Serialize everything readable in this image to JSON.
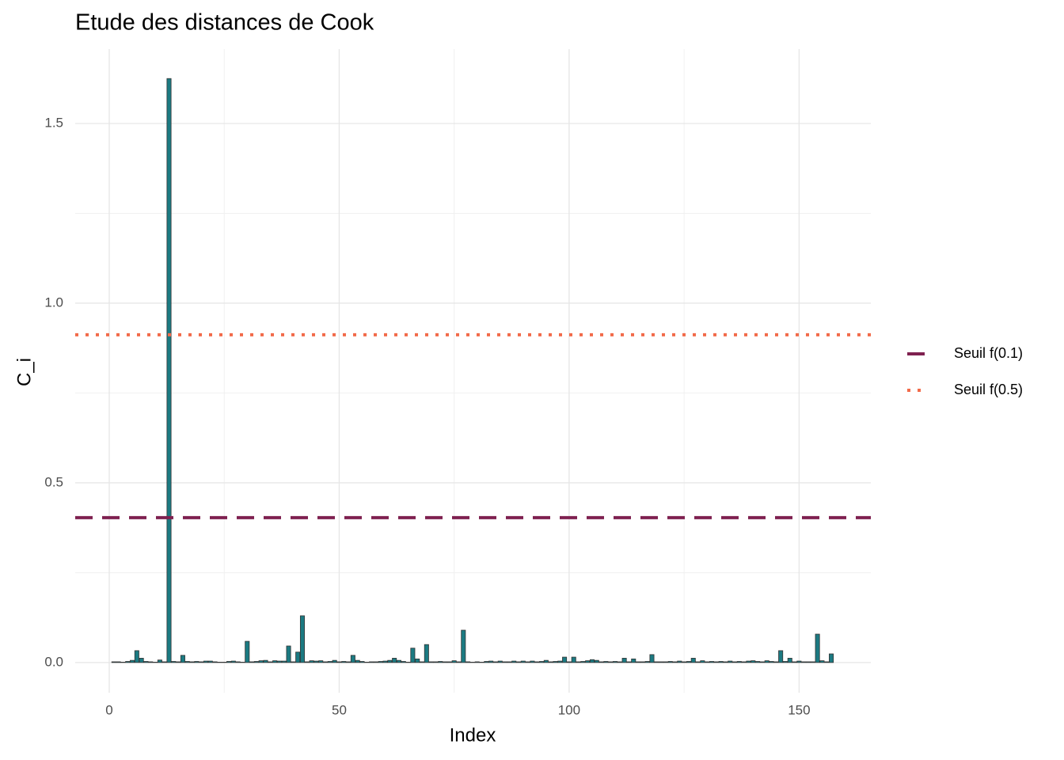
{
  "chart_data": {
    "type": "bar",
    "title": "Etude des distances de Cook",
    "x_label": "Index",
    "y_label": "C_i",
    "x": [
      1,
      2,
      3,
      4,
      5,
      6,
      7,
      8,
      9,
      10,
      11,
      12,
      13,
      14,
      15,
      16,
      17,
      18,
      19,
      20,
      21,
      22,
      23,
      24,
      25,
      26,
      27,
      28,
      29,
      30,
      31,
      32,
      33,
      34,
      35,
      36,
      37,
      38,
      39,
      40,
      41,
      42,
      43,
      44,
      45,
      46,
      47,
      48,
      49,
      50,
      51,
      52,
      53,
      54,
      55,
      56,
      57,
      58,
      59,
      60,
      61,
      62,
      63,
      64,
      65,
      66,
      67,
      68,
      69,
      70,
      71,
      72,
      73,
      74,
      75,
      76,
      77,
      78,
      79,
      80,
      81,
      82,
      83,
      84,
      85,
      86,
      87,
      88,
      89,
      90,
      91,
      92,
      93,
      94,
      95,
      96,
      97,
      98,
      99,
      100,
      101,
      102,
      103,
      104,
      105,
      106,
      107,
      108,
      109,
      110,
      111,
      112,
      113,
      114,
      115,
      116,
      117,
      118,
      119,
      120,
      121,
      122,
      123,
      124,
      125,
      126,
      127,
      128,
      129,
      130,
      131,
      132,
      133,
      134,
      135,
      136,
      137,
      138,
      139,
      140,
      141,
      142,
      143,
      144,
      145,
      146,
      147,
      148,
      149,
      150,
      151,
      152,
      153,
      154,
      155,
      156,
      157
    ],
    "values": [
      0.002,
      0.002,
      0.001,
      0.003,
      0.006,
      0.033,
      0.012,
      0.003,
      0.002,
      0.001,
      0.007,
      0.002,
      1.625,
      0.003,
      0.002,
      0.02,
      0.003,
      0.002,
      0.003,
      0.002,
      0.004,
      0.004,
      0.002,
      0.001,
      0.001,
      0.003,
      0.004,
      0.002,
      0.001,
      0.059,
      0.002,
      0.003,
      0.005,
      0.006,
      0.002,
      0.005,
      0.004,
      0.004,
      0.046,
      0.002,
      0.029,
      0.13,
      0.002,
      0.005,
      0.004,
      0.005,
      0.002,
      0.003,
      0.006,
      0.002,
      0.003,
      0.002,
      0.02,
      0.006,
      0.003,
      0.001,
      0.002,
      0.002,
      0.003,
      0.004,
      0.006,
      0.012,
      0.006,
      0.003,
      0.001,
      0.04,
      0.01,
      0.002,
      0.05,
      0.002,
      0.002,
      0.003,
      0.002,
      0.002,
      0.005,
      0.002,
      0.09,
      0.002,
      0.001,
      0.002,
      0.001,
      0.003,
      0.004,
      0.002,
      0.004,
      0.002,
      0.002,
      0.004,
      0.002,
      0.004,
      0.002,
      0.004,
      0.002,
      0.003,
      0.006,
      0.002,
      0.003,
      0.004,
      0.015,
      0.002,
      0.015,
      0.002,
      0.003,
      0.005,
      0.008,
      0.006,
      0.002,
      0.003,
      0.002,
      0.003,
      0.002,
      0.012,
      0.002,
      0.01,
      0.002,
      0.002,
      0.003,
      0.022,
      0.002,
      0.002,
      0.002,
      0.003,
      0.002,
      0.004,
      0.002,
      0.003,
      0.012,
      0.002,
      0.005,
      0.002,
      0.003,
      0.002,
      0.003,
      0.002,
      0.004,
      0.002,
      0.003,
      0.002,
      0.004,
      0.005,
      0.003,
      0.002,
      0.005,
      0.003,
      0.002,
      0.033,
      0.003,
      0.012,
      0.002,
      0.004,
      0.002,
      0.002,
      0.002,
      0.079,
      0.005,
      0.002,
      0.024
    ],
    "color": "#1b7a82",
    "xlim": [
      -7.4,
      165.6
    ],
    "xticks": [
      0,
      50,
      100,
      150
    ],
    "ylim": [
      -0.084,
      1.707
    ],
    "yticks": [
      {
        "value": 0,
        "label": "0.0"
      },
      0.5,
      {
        "value": 1,
        "label": "1.0"
      },
      1.5
    ],
    "grid": true,
    "thresholds": [
      {
        "name": "Seuil f(0.1)",
        "value": 0.403,
        "color": "#7f2150",
        "style": "dashed"
      },
      {
        "name": "Seuil f(0.5)",
        "value": 0.912,
        "color": "#f26b4a",
        "style": "dotted"
      }
    ],
    "legend": "right"
  }
}
